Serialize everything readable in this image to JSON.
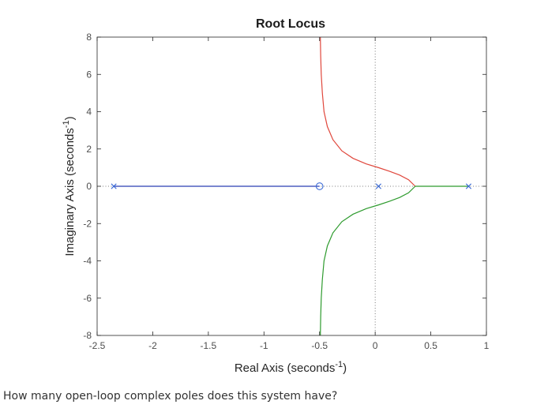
{
  "chart_data": {
    "type": "line",
    "title": "Root Locus",
    "xlabel": "Real Axis (seconds",
    "ylabel": "Imaginary Axis (seconds",
    "unit_exponent": "-1",
    "xlim": [
      -2.5,
      1
    ],
    "ylim": [
      -8,
      8
    ],
    "xticks": [
      -2.5,
      -2,
      -1.5,
      -1,
      -0.5,
      0,
      0.5,
      1
    ],
    "yticks": [
      -8,
      -6,
      -4,
      -2,
      0,
      2,
      4,
      6,
      8
    ],
    "xtick_labels": [
      "-2.5",
      "-2",
      "-1.5",
      "-1",
      "-0.5",
      "0",
      "0.5",
      "1"
    ],
    "ytick_labels": [
      "-8",
      "-6",
      "-4",
      "-2",
      "0",
      "2",
      "4",
      "6",
      "8"
    ],
    "grid": false,
    "colors": {
      "blue": "#2b3fb5",
      "red": "#e0473c",
      "green": "#2e9b2e",
      "marker": "#3c6bd6",
      "axis": "#262626"
    },
    "poles": [
      {
        "x": -2.35,
        "y": 0
      },
      {
        "x": 0.03,
        "y": 0
      },
      {
        "x": 0.84,
        "y": 0
      }
    ],
    "zeros": [
      {
        "x": -0.5,
        "y": 0
      }
    ],
    "branches": [
      {
        "color": "blue",
        "x": [
          -2.35,
          -0.5
        ],
        "y": [
          0,
          0
        ]
      },
      {
        "color": "red",
        "x": [
          0.36,
          0.3,
          0.22,
          0.13,
          0.03,
          -0.08,
          -0.2,
          -0.3,
          -0.38,
          -0.43,
          -0.46,
          -0.475,
          -0.485,
          -0.49,
          -0.493
        ],
        "y": [
          0,
          0.35,
          0.6,
          0.8,
          1.0,
          1.2,
          1.5,
          1.9,
          2.5,
          3.2,
          4.0,
          5.0,
          6.0,
          7.0,
          8.0
        ]
      },
      {
        "color": "green",
        "x": [
          0.36,
          0.3,
          0.22,
          0.13,
          0.03,
          -0.08,
          -0.2,
          -0.3,
          -0.38,
          -0.43,
          -0.46,
          -0.475,
          -0.485,
          -0.49,
          -0.493
        ],
        "y": [
          0,
          -0.35,
          -0.6,
          -0.8,
          -1.0,
          -1.2,
          -1.5,
          -1.9,
          -2.5,
          -3.2,
          -4.0,
          -5.0,
          -6.0,
          -7.0,
          -8.0
        ]
      },
      {
        "color": "green",
        "x": [
          0.36,
          0.84
        ],
        "y": [
          0,
          0
        ]
      }
    ]
  },
  "question": "How many open-loop complex poles does this system have?"
}
